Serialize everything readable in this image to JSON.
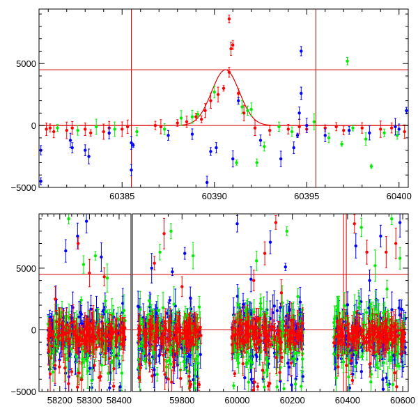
{
  "colors": {
    "red": "#ff0000",
    "green": "#00ee00",
    "blue": "#0000ff",
    "axis": "#000000",
    "refline": "#dd0000"
  },
  "chart_data": [
    {
      "type": "scatter",
      "title": "",
      "xlabel": "",
      "ylabel": "",
      "xlim": [
        60380.5,
        60400.5
      ],
      "ylim": [
        -5000,
        9400
      ],
      "xticks": [
        60385,
        60390,
        60395,
        60400
      ],
      "xtick_labels": [
        "60385",
        "60390",
        "60395",
        "60400"
      ],
      "yticks": [
        -5000,
        0,
        5000
      ],
      "ytick_labels": [
        "−5000",
        "0",
        "5000"
      ],
      "hlines": [
        4500,
        0
      ],
      "vlines": [
        60385.5,
        60395.5
      ],
      "model_curve": {
        "type": "gaussian",
        "center": 60390.6,
        "amplitude": 4500,
        "sigma": 0.75
      },
      "series": [
        {
          "color": "red",
          "points": [
            [
              60380.9,
              -300
            ],
            [
              60381.1,
              -200
            ],
            [
              60381.3,
              -500
            ],
            [
              60382.0,
              -400
            ],
            [
              60382.3,
              -200
            ],
            [
              60383.0,
              -300
            ],
            [
              60383.3,
              -600
            ],
            [
              60384.0,
              -500
            ],
            [
              60384.3,
              -200
            ],
            [
              60385.0,
              -300
            ],
            [
              60385.3,
              -100
            ],
            [
              60386.8,
              0
            ],
            [
              60387.1,
              -100
            ],
            [
              60388.0,
              200
            ],
            [
              60388.5,
              300
            ],
            [
              60389.0,
              700
            ],
            [
              60389.3,
              500
            ],
            [
              60389.5,
              1200
            ],
            [
              60389.8,
              2000
            ],
            [
              60390.2,
              2500
            ],
            [
              60390.5,
              3000
            ],
            [
              60390.8,
              4300
            ],
            [
              60390.9,
              6200
            ],
            [
              60391.0,
              6500
            ],
            [
              60390.8,
              8600
            ],
            [
              60391.3,
              2600
            ],
            [
              60391.6,
              1000
            ],
            [
              60392.2,
              -200
            ],
            [
              60393.0,
              -400
            ],
            [
              60394.0,
              -300
            ],
            [
              60394.6,
              -100
            ],
            [
              60395.0,
              -300
            ],
            [
              60396.0,
              -200
            ],
            [
              60396.6,
              -100
            ],
            [
              60397.0,
              -400
            ],
            [
              60398.0,
              -200
            ],
            [
              60399.0,
              -300
            ],
            [
              60399.6,
              -200
            ],
            [
              60400.3,
              -500
            ]
          ]
        },
        {
          "color": "green",
          "points": [
            [
              60381.5,
              -200
            ],
            [
              60382.6,
              -400
            ],
            [
              60383.6,
              -100
            ],
            [
              60384.6,
              -300
            ],
            [
              60385.8,
              -500
            ],
            [
              60387.3,
              -300
            ],
            [
              60388.2,
              600
            ],
            [
              60388.8,
              700
            ],
            [
              60389.1,
              900
            ],
            [
              60390.0,
              2700
            ],
            [
              60391.2,
              -3000
            ],
            [
              60391.5,
              1500
            ],
            [
              60391.8,
              1200
            ],
            [
              60392.0,
              1300
            ],
            [
              60392.3,
              -3000
            ],
            [
              60392.7,
              -1700
            ],
            [
              60393.5,
              -100
            ],
            [
              60394.2,
              -500
            ],
            [
              60395.4,
              300
            ],
            [
              60396.2,
              -1000
            ],
            [
              60396.9,
              -1500
            ],
            [
              60397.2,
              5200
            ],
            [
              60397.5,
              -200
            ],
            [
              60398.2,
              -1100
            ],
            [
              60398.5,
              -3300
            ],
            [
              60399.2,
              -600
            ],
            [
              60399.9,
              -800
            ]
          ]
        },
        {
          "color": "blue",
          "points": [
            [
              60380.6,
              -2000
            ],
            [
              60380.6,
              -4500
            ],
            [
              60382.2,
              -1200
            ],
            [
              60382.3,
              -1800
            ],
            [
              60383.0,
              -2000
            ],
            [
              60383.2,
              -2500
            ],
            [
              60384.3,
              -600
            ],
            [
              60385.5,
              -1400
            ],
            [
              60385.6,
              -1600
            ],
            [
              60385.5,
              -3600
            ],
            [
              60387.5,
              -800
            ],
            [
              60388.8,
              -700
            ],
            [
              60389.6,
              -4600
            ],
            [
              60389.8,
              -2100
            ],
            [
              60390.1,
              -1800
            ],
            [
              60391.0,
              -2700
            ],
            [
              60391.3,
              2000
            ],
            [
              60392.5,
              -1200
            ],
            [
              60393.6,
              -2700
            ],
            [
              60394.3,
              -1800
            ],
            [
              60394.5,
              -800
            ],
            [
              60394.6,
              1000
            ],
            [
              60394.7,
              2600
            ],
            [
              60394.7,
              6000
            ],
            [
              60395.0,
              0
            ],
            [
              60396.0,
              -800
            ],
            [
              60397.3,
              -400
            ],
            [
              60398.4,
              -600
            ],
            [
              60399.8,
              -100
            ],
            [
              60400.0,
              -300
            ],
            [
              60400.4,
              1200
            ]
          ]
        }
      ]
    },
    {
      "type": "scatter",
      "title": "",
      "xlabel": "",
      "ylabel": "",
      "ylim": [
        -5000,
        9400
      ],
      "panels": [
        {
          "xlim": [
            58130,
            58440
          ],
          "xticks": [
            58200,
            58300,
            58400
          ],
          "xtick_labels": [
            "58200",
            "58300",
            "58400"
          ]
        },
        {
          "xlim": [
            59620,
            60620
          ],
          "xticks": [
            59800,
            60000,
            60200,
            60400,
            60600
          ],
          "xtick_labels": [
            "59800",
            "60000",
            "60200",
            "60400",
            "60600"
          ]
        }
      ],
      "yticks": [
        -5000,
        0,
        5000
      ],
      "ytick_labels": [
        "−5000",
        "0",
        "5000"
      ],
      "hlines": [
        4500,
        0
      ],
      "vlines": [
        60385.5,
        60395.5
      ],
      "observing_seasons": [
        [
          58160,
          58420
        ],
        [
          59640,
          59870
        ],
        [
          59980,
          60240
        ],
        [
          60350,
          60610
        ]
      ],
      "outliers": {
        "red": [
          [
            58185,
            2500
          ],
          [
            58262,
            7000
          ],
          [
            58300,
            4600
          ],
          [
            58350,
            4300
          ],
          [
            59700,
            5400
          ],
          [
            59735,
            7800
          ],
          [
            59800,
            3500
          ],
          [
            60060,
            4000
          ],
          [
            60100,
            6200
          ],
          [
            60140,
            8700
          ],
          [
            60160,
            3000
          ],
          [
            60425,
            8600
          ],
          [
            60470,
            6300
          ],
          [
            60540,
            6300
          ],
          [
            60575,
            7000
          ]
        ],
        "green": [
          [
            58230,
            9000
          ],
          [
            58280,
            5300
          ],
          [
            58320,
            6000
          ],
          [
            58360,
            4200
          ],
          [
            59720,
            6300
          ],
          [
            59760,
            8000
          ],
          [
            59840,
            6000
          ],
          [
            60070,
            5600
          ],
          [
            60180,
            8000
          ],
          [
            60220,
            2700
          ],
          [
            60450,
            8300
          ],
          [
            60500,
            5200
          ],
          [
            60560,
            9000
          ],
          [
            60590,
            5800
          ]
        ],
        "blue": [
          [
            58220,
            6400
          ],
          [
            58260,
            7600
          ],
          [
            58290,
            8800
          ],
          [
            58340,
            5900
          ],
          [
            59690,
            5000
          ],
          [
            59765,
            4700
          ],
          [
            59810,
            6200
          ],
          [
            60000,
            8600
          ],
          [
            60050,
            4100
          ],
          [
            60120,
            7100
          ],
          [
            60175,
            5100
          ],
          [
            60430,
            6800
          ],
          [
            60480,
            4000
          ],
          [
            60520,
            7600
          ],
          [
            60590,
            8700
          ]
        ]
      }
    }
  ]
}
